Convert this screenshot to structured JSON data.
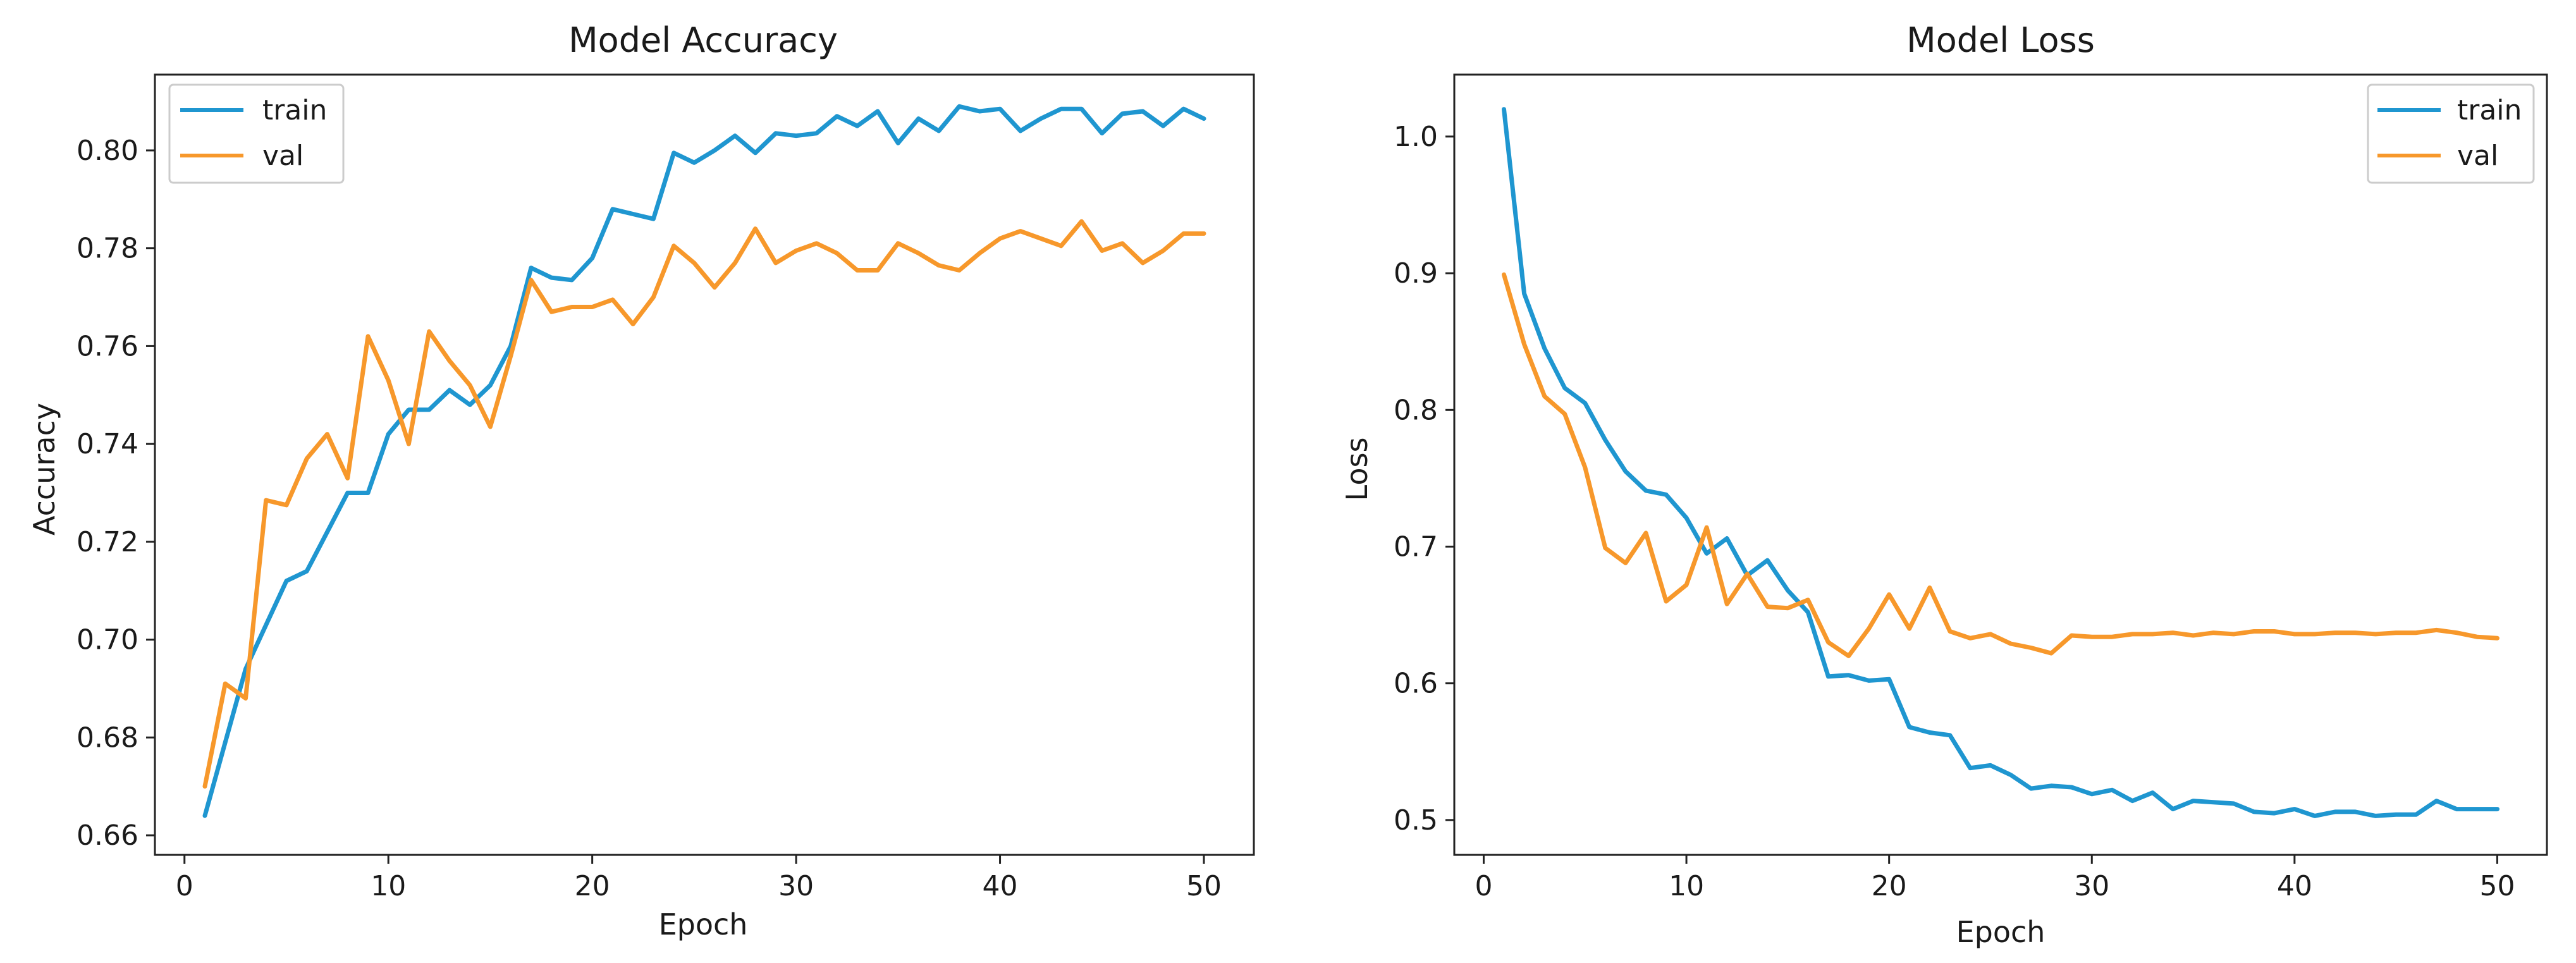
{
  "colors": {
    "train": "#1f96d0",
    "val": "#f7982b",
    "axis": "#222222"
  },
  "chart_data": [
    {
      "type": "line",
      "title": "Model Accuracy",
      "xlabel": "Epoch",
      "ylabel": "Accuracy",
      "xlim": [
        -1.45,
        52.45
      ],
      "ylim": [
        0.656,
        0.8155
      ],
      "xticks": [
        0,
        10,
        20,
        30,
        40,
        50
      ],
      "xtick_labels": [
        "0",
        "10",
        "20",
        "30",
        "40",
        "50"
      ],
      "yticks": [
        0.66,
        0.68,
        0.7,
        0.72,
        0.74,
        0.76,
        0.78,
        0.8
      ],
      "ytick_labels": [
        "0.66",
        "0.68",
        "0.70",
        "0.72",
        "0.74",
        "0.76",
        "0.78",
        "0.80"
      ],
      "grid": false,
      "legend": "upper-left",
      "x": [
        1,
        2,
        3,
        4,
        5,
        6,
        7,
        8,
        9,
        10,
        11,
        12,
        13,
        14,
        15,
        16,
        17,
        18,
        19,
        20,
        21,
        22,
        23,
        24,
        25,
        26,
        27,
        28,
        29,
        30,
        31,
        32,
        33,
        34,
        35,
        36,
        37,
        38,
        39,
        40,
        41,
        42,
        43,
        44,
        45,
        46,
        47,
        48,
        49,
        50
      ],
      "series": [
        {
          "name": "train",
          "values": [
            0.664,
            0.679,
            0.694,
            0.703,
            0.712,
            0.714,
            0.722,
            0.73,
            0.73,
            0.742,
            0.747,
            0.747,
            0.751,
            0.748,
            0.752,
            0.76,
            0.776,
            0.774,
            0.7735,
            0.778,
            0.788,
            0.787,
            0.786,
            0.7995,
            0.7975,
            0.8,
            0.803,
            0.7995,
            0.8035,
            0.803,
            0.8035,
            0.807,
            0.805,
            0.808,
            0.8015,
            0.8065,
            0.804,
            0.809,
            0.808,
            0.8085,
            0.804,
            0.8065,
            0.8085,
            0.8085,
            0.8035,
            0.8075,
            0.808,
            0.805,
            0.8085,
            0.8065
          ]
        },
        {
          "name": "val",
          "values": [
            0.67,
            0.691,
            0.688,
            0.7285,
            0.7275,
            0.737,
            0.742,
            0.733,
            0.762,
            0.753,
            0.74,
            0.763,
            0.757,
            0.752,
            0.7435,
            0.758,
            0.7735,
            0.767,
            0.768,
            0.768,
            0.7695,
            0.7645,
            0.77,
            0.7805,
            0.777,
            0.772,
            0.777,
            0.784,
            0.777,
            0.7795,
            0.781,
            0.779,
            0.7755,
            0.7755,
            0.781,
            0.779,
            0.7765,
            0.7755,
            0.779,
            0.782,
            0.7835,
            0.782,
            0.7805,
            0.7855,
            0.7795,
            0.781,
            0.777,
            0.7795,
            0.783,
            0.783
          ]
        }
      ]
    },
    {
      "type": "line",
      "title": "Model Loss",
      "xlabel": "Epoch",
      "ylabel": "Loss",
      "xlim": [
        -1.45,
        52.45
      ],
      "ylim": [
        0.4745,
        1.0453
      ],
      "xticks": [
        0,
        10,
        20,
        30,
        40,
        50
      ],
      "xtick_labels": [
        "0",
        "10",
        "20",
        "30",
        "40",
        "50"
      ],
      "yticks": [
        0.5,
        0.6,
        0.7,
        0.8,
        0.9,
        1.0
      ],
      "ytick_labels": [
        "0.5",
        "0.6",
        "0.7",
        "0.8",
        "0.9",
        "1.0"
      ],
      "grid": false,
      "legend": "upper-right",
      "x": [
        1,
        2,
        3,
        4,
        5,
        6,
        7,
        8,
        9,
        10,
        11,
        12,
        13,
        14,
        15,
        16,
        17,
        18,
        19,
        20,
        21,
        22,
        23,
        24,
        25,
        26,
        27,
        28,
        29,
        30,
        31,
        32,
        33,
        34,
        35,
        36,
        37,
        38,
        39,
        40,
        41,
        42,
        43,
        44,
        45,
        46,
        47,
        48,
        49,
        50
      ],
      "series": [
        {
          "name": "train",
          "values": [
            1.02,
            0.885,
            0.845,
            0.816,
            0.805,
            0.778,
            0.755,
            0.741,
            0.738,
            0.721,
            0.695,
            0.706,
            0.679,
            0.69,
            0.668,
            0.652,
            0.605,
            0.606,
            0.602,
            0.603,
            0.568,
            0.564,
            0.562,
            0.538,
            0.54,
            0.533,
            0.523,
            0.525,
            0.524,
            0.519,
            0.522,
            0.514,
            0.52,
            0.508,
            0.514,
            0.513,
            0.512,
            0.506,
            0.505,
            0.508,
            0.503,
            0.506,
            0.506,
            0.503,
            0.504,
            0.504,
            0.514,
            0.508,
            0.508,
            0.508
          ]
        },
        {
          "name": "val",
          "values": [
            0.899,
            0.848,
            0.81,
            0.797,
            0.758,
            0.699,
            0.688,
            0.71,
            0.66,
            0.672,
            0.714,
            0.658,
            0.68,
            0.656,
            0.655,
            0.661,
            0.63,
            0.62,
            0.64,
            0.665,
            0.64,
            0.67,
            0.638,
            0.633,
            0.636,
            0.629,
            0.626,
            0.622,
            0.635,
            0.634,
            0.634,
            0.636,
            0.636,
            0.637,
            0.635,
            0.637,
            0.636,
            0.638,
            0.638,
            0.636,
            0.636,
            0.637,
            0.637,
            0.636,
            0.637,
            0.637,
            0.639,
            0.637,
            0.634,
            0.633
          ]
        }
      ]
    }
  ]
}
